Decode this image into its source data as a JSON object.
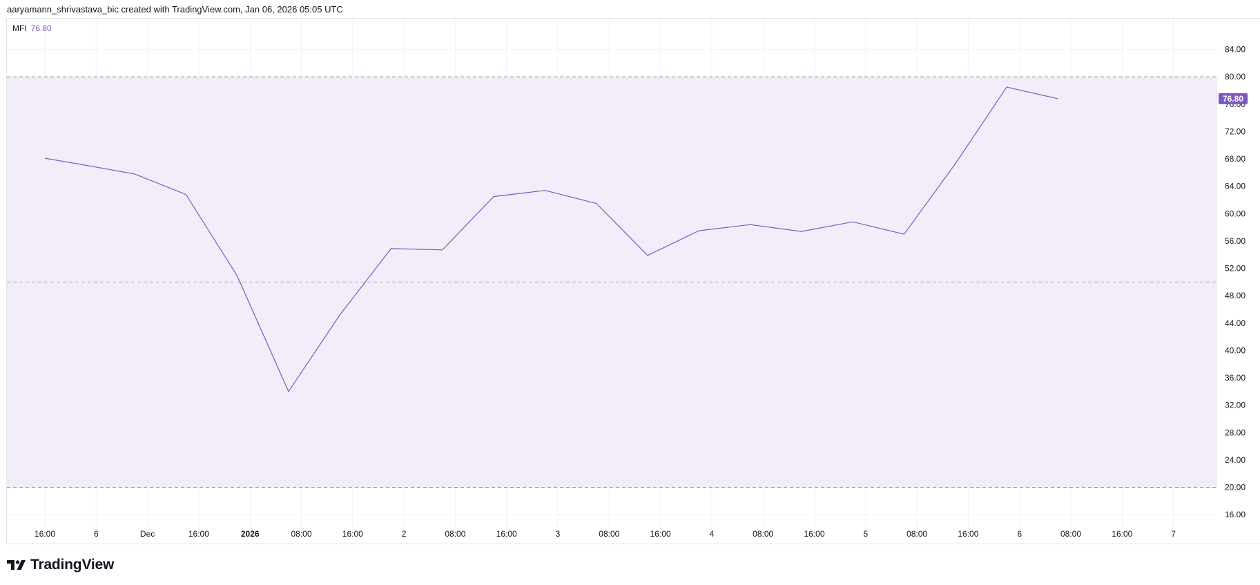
{
  "header": {
    "attribution": "aaryamann_shrivastava_bic created with TradingView.com, Jan 06, 2026 05:05 UTC"
  },
  "legend": {
    "indicator": "MFI",
    "value": "76.80"
  },
  "footer": {
    "brand": "TradingView"
  },
  "colors": {
    "line": "#7e57c2",
    "band": "#ede7f6",
    "badge": "#7e57c2",
    "grid": "#f0f3fa",
    "dashed": "#787b86"
  },
  "chart_data": {
    "type": "line",
    "title": "",
    "xlabel": "",
    "ylabel": "",
    "ylim": [
      13.5,
      88.5
    ],
    "y_ticks": [
      "84.00",
      "80.00",
      "76.00",
      "72.00",
      "68.00",
      "64.00",
      "60.00",
      "56.00",
      "52.00",
      "48.00",
      "44.00",
      "40.00",
      "36.00",
      "32.00",
      "28.00",
      "24.00",
      "20.00",
      "16.00"
    ],
    "x_tick_labels": [
      "16:00",
      "6",
      "Dec",
      "16:00",
      "2026",
      "08:00",
      "16:00",
      "2",
      "08:00",
      "16:00",
      "3",
      "08:00",
      "16:00",
      "4",
      "08:00",
      "16:00",
      "5",
      "08:00",
      "16:00",
      "6",
      "08:00",
      "16:00",
      "7"
    ],
    "x_tick_bold": [
      "2026"
    ],
    "bands": {
      "upper": 80,
      "middle": 50,
      "lower": 20
    },
    "last_value_label": "76.80",
    "series": [
      {
        "x_index": [
          0,
          0.7,
          1.75,
          2.75,
          3.75,
          4.75,
          5.75,
          6.75,
          7.75,
          8.75,
          9.75,
          10.75,
          11.75,
          12.75,
          13.75,
          14.75,
          15.75,
          16.75,
          17.75,
          18.75,
          19.75
        ],
        "values": [
          68.1,
          67.2,
          65.8,
          62.8,
          50.9,
          34.0,
          45.2,
          54.9,
          54.7,
          62.5,
          63.4,
          61.5,
          53.9,
          57.5,
          58.4,
          57.4,
          58.8,
          57.0,
          67.3,
          78.5,
          76.8
        ]
      }
    ]
  }
}
